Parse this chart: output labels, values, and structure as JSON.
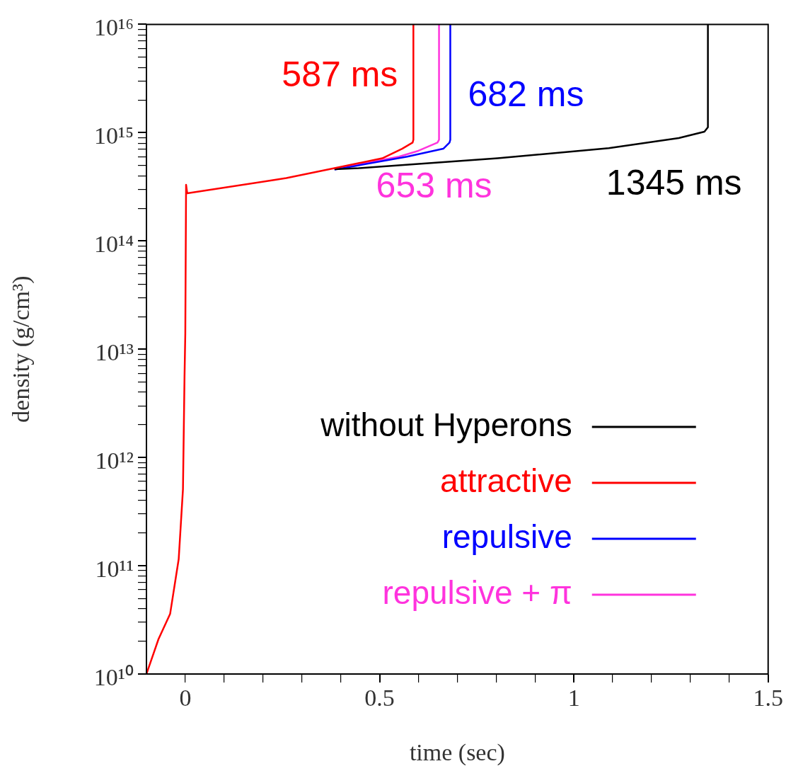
{
  "chart_data": {
    "type": "line",
    "xlabel": "time (sec)",
    "ylabel": "density (g/cm³)",
    "log": "y",
    "grid": false,
    "legend": "bottom right",
    "xlim": [
      -0.1,
      1.5
    ],
    "ylim": [
      10000000000.0,
      1e+16
    ],
    "xticks": [
      0,
      {
        "value": 0.1,
        "label": null
      },
      {
        "value": 0.2,
        "label": null
      },
      {
        "value": 0.3,
        "label": null
      },
      {
        "value": 0.4,
        "label": null
      },
      0.5,
      {
        "value": 0.6,
        "label": null
      },
      {
        "value": 0.7,
        "label": null
      },
      {
        "value": 0.8,
        "label": null
      },
      {
        "value": 0.9,
        "label": null
      },
      1,
      {
        "value": 1.1,
        "label": null
      },
      {
        "value": 1.2,
        "label": null
      },
      {
        "value": 1.3,
        "label": null
      },
      {
        "value": 1.4,
        "label": null
      },
      1.5
    ],
    "yticks": [
      {
        "value": 10000000000.0,
        "label": "10¹⁰"
      },
      {
        "value": 20000000000.0,
        "label": null
      },
      {
        "value": 30000000000.0,
        "label": null
      },
      {
        "value": 40000000000.0,
        "label": null
      },
      {
        "value": 50000000000.0,
        "label": null
      },
      {
        "value": 60000000000.0,
        "label": null
      },
      {
        "value": 70000000000.0,
        "label": null
      },
      {
        "value": 80000000000.0,
        "label": null
      },
      {
        "value": 90000000000.0,
        "label": null
      },
      {
        "value": 100000000000.0,
        "label": "10¹¹"
      },
      {
        "value": 200000000000.0,
        "label": null
      },
      {
        "value": 300000000000.0,
        "label": null
      },
      {
        "value": 400000000000.0,
        "label": null
      },
      {
        "value": 500000000000.0,
        "label": null
      },
      {
        "value": 600000000000.0,
        "label": null
      },
      {
        "value": 700000000000.0,
        "label": null
      },
      {
        "value": 800000000000.0,
        "label": null
      },
      {
        "value": 900000000000.0,
        "label": null
      },
      {
        "value": 1000000000000.0,
        "label": "10¹²"
      },
      {
        "value": 2000000000000.0,
        "label": null
      },
      {
        "value": 3000000000000.0,
        "label": null
      },
      {
        "value": 4000000000000.0,
        "label": null
      },
      {
        "value": 5000000000000.0,
        "label": null
      },
      {
        "value": 6000000000000.0,
        "label": null
      },
      {
        "value": 7000000000000.0,
        "label": null
      },
      {
        "value": 8000000000000.0,
        "label": null
      },
      {
        "value": 9000000000000.0,
        "label": null
      },
      {
        "value": 10000000000000.0,
        "label": "10¹³"
      },
      {
        "value": 20000000000000.0,
        "label": null
      },
      {
        "value": 30000000000000.0,
        "label": null
      },
      {
        "value": 40000000000000.0,
        "label": null
      },
      {
        "value": 50000000000000.0,
        "label": null
      },
      {
        "value": 60000000000000.0,
        "label": null
      },
      {
        "value": 70000000000000.0,
        "label": null
      },
      {
        "value": 80000000000000.0,
        "label": null
      },
      {
        "value": 90000000000000.0,
        "label": null
      },
      {
        "value": 100000000000000.0,
        "label": "10¹⁴"
      },
      {
        "value": 200000000000000.0,
        "label": null
      },
      {
        "value": 300000000000000.0,
        "label": null
      },
      {
        "value": 400000000000000.0,
        "label": null
      },
      {
        "value": 500000000000000.0,
        "label": null
      },
      {
        "value": 600000000000000.0,
        "label": null
      },
      {
        "value": 700000000000000.0,
        "label": null
      },
      {
        "value": 800000000000000.0,
        "label": null
      },
      {
        "value": 900000000000000.0,
        "label": null
      },
      {
        "value": 1000000000000000.0,
        "label": "10¹⁵"
      },
      {
        "value": 2000000000000000.0,
        "label": null
      },
      {
        "value": 3000000000000000.0,
        "label": null
      },
      {
        "value": 4000000000000000.0,
        "label": null
      },
      {
        "value": 5000000000000000.0,
        "label": null
      },
      {
        "value": 6000000000000000.0,
        "label": null
      },
      {
        "value": 7000000000000000.0,
        "label": null
      },
      {
        "value": 8000000000000000.0,
        "label": null
      },
      {
        "value": 9000000000000000.0,
        "label": null
      },
      {
        "value": 1e+16,
        "label": "10¹⁶"
      }
    ],
    "series": [
      {
        "name": "without Hyperons",
        "color": "#000000",
        "x": [
          0.384,
          0.446,
          0.804,
          1.09,
          1.27,
          1.336,
          1.345,
          1.345
        ],
        "values": [
          460000000000000.0,
          470000000000000.0,
          580000000000000.0,
          720000000000000.0,
          890000000000000.0,
          1020000000000000.0,
          1120000000000000.0,
          1e+16
        ]
      },
      {
        "name": "attractive",
        "color": "#ff0000",
        "x": [
          -0.1,
          -0.069,
          -0.039,
          -0.017,
          -0.006,
          -0.002,
          0,
          0.002,
          0.005,
          0.26,
          0.384,
          0.507,
          0.558,
          0.585,
          0.587,
          0.587
        ],
        "values": [
          10000000000.0,
          21000000000.0,
          36000000000.0,
          115000000000.0,
          510000000000.0,
          5600000000000.0,
          14000000000000.0,
          330000000000000.0,
          275000000000000.0,
          380000000000000.0,
          470000000000000.0,
          580000000000000.0,
          710000000000000.0,
          810000000000000.0,
          860000000000000.0,
          1e+16
        ]
      },
      {
        "name": "repulsive",
        "color": "#0000ff",
        "x": [
          0.384,
          0.571,
          0.664,
          0.68,
          0.682,
          0.682
        ],
        "values": [
          455000000000000.0,
          600000000000000.0,
          710000000000000.0,
          810000000000000.0,
          860000000000000.0,
          1e+16
        ]
      },
      {
        "name": "repulsive + π",
        "color": "#ff33dd",
        "x": [
          0.384,
          0.55,
          0.6,
          0.649,
          0.653,
          0.653
        ],
        "values": [
          460000000000000.0,
          600000000000000.0,
          680000000000000.0,
          810000000000000.0,
          860000000000000.0,
          1e+16
        ]
      }
    ],
    "annotations": [
      {
        "text": "587 ms",
        "x": 0.587,
        "y": 860000000000000.0
      },
      {
        "text": "682 ms",
        "x": 0.682,
        "y": 860000000000000.0
      },
      {
        "text": "653 ms",
        "x": 0.653,
        "y": 860000000000000.0
      },
      {
        "text": "1345 ms",
        "x": 1.345,
        "y": 1120000000000000.0
      }
    ]
  }
}
